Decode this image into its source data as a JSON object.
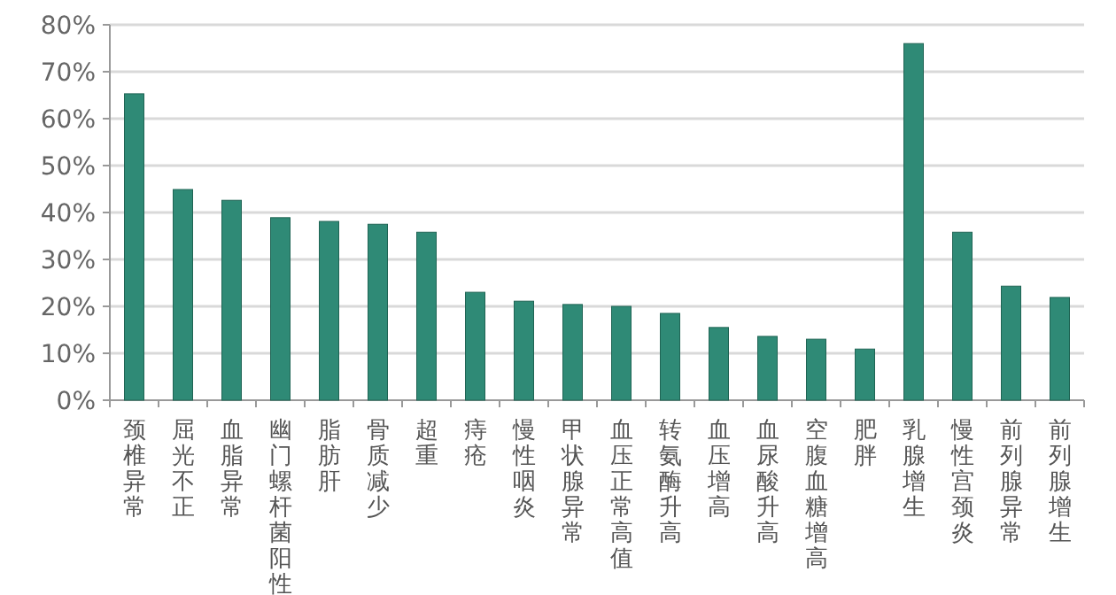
{
  "chart_data": {
    "type": "bar",
    "categories": [
      "颈椎异常",
      "屈光不正",
      "血脂异常",
      "幽门螺杆菌阳性",
      "脂肪肝",
      "骨质减少",
      "超重",
      "痔疮",
      "慢性咽炎",
      "甲状腺异常",
      "血压正常高值",
      "转氨酶升高",
      "血压增高",
      "血尿酸升高",
      "空腹血糖增高",
      "肥胖",
      "乳腺增生",
      "慢性宫颈炎",
      "前列腺异常",
      "前列腺增生"
    ],
    "values": [
      65.3,
      44.9,
      42.6,
      38.9,
      38.1,
      37.5,
      35.8,
      23,
      21.1,
      20.4,
      20,
      18.5,
      15.5,
      13.6,
      13,
      10.9,
      76,
      35.8,
      24.3,
      21.9
    ],
    "color": "#2f8a76",
    "ylim": [
      0,
      80
    ],
    "yticks": [
      {
        "value": 0,
        "label": "0%"
      },
      {
        "value": 10,
        "label": "10%"
      },
      {
        "value": 20,
        "label": "20%"
      },
      {
        "value": 30,
        "label": "30%"
      },
      {
        "value": 40,
        "label": "40%"
      },
      {
        "value": 50,
        "label": "50%"
      },
      {
        "value": 60,
        "label": "60%"
      },
      {
        "value": 70,
        "label": "70%"
      },
      {
        "value": 80,
        "label": "80%"
      }
    ],
    "grid": "y"
  }
}
